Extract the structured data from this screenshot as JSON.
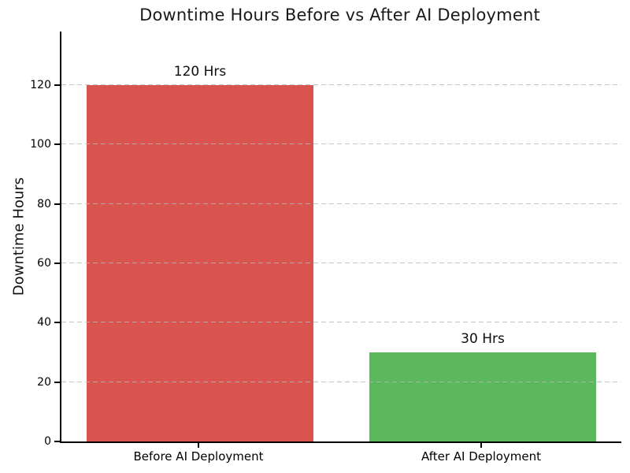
{
  "chart_data": {
    "type": "bar",
    "title": "Downtime Hours Before vs After AI Deployment",
    "xlabel": "",
    "ylabel": "Downtime Hours",
    "categories": [
      "Before AI Deployment",
      "After AI Deployment"
    ],
    "values": [
      120,
      30
    ],
    "bar_value_labels": [
      "120 Hrs",
      "30 Hrs"
    ],
    "bar_colors": [
      "#d9534f",
      "#5cb85c"
    ],
    "ylim": [
      0,
      138
    ],
    "y_ticks": [
      0,
      20,
      40,
      60,
      80,
      100,
      120
    ],
    "grid": "horizontal dashed gridlines drawn over bars",
    "grid_color": "#b5b5b5",
    "spine_color": "#000000",
    "background_color": "#ffffff",
    "legend": "none"
  }
}
